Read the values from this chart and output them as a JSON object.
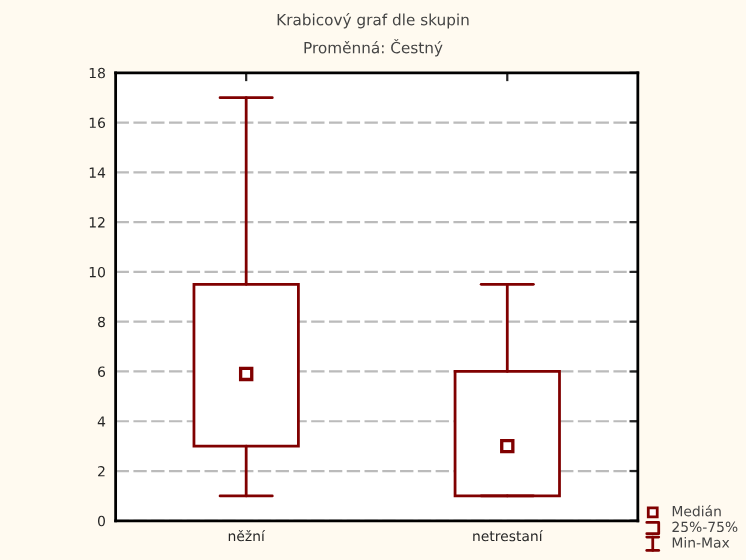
{
  "chart_data": {
    "type": "box",
    "title": "Krabicový graf dle skupin",
    "subtitle": "Proměnná: Čestný",
    "categories": [
      "něžní",
      "netrestaní"
    ],
    "boxes": [
      {
        "low": 1,
        "q1": 3,
        "median": 5.9,
        "q3": 9.5,
        "high": 17
      },
      {
        "low": 1,
        "q1": 1,
        "median": 3,
        "q3": 6,
        "high": 9.5
      }
    ],
    "color": "#800000",
    "ylim": [
      0,
      18
    ],
    "yticks": [
      0,
      2,
      4,
      6,
      8,
      10,
      12,
      14,
      16,
      18
    ],
    "grid": "y",
    "annotations": [
      "Medián",
      "25%-75%",
      "Min-Max"
    ]
  }
}
